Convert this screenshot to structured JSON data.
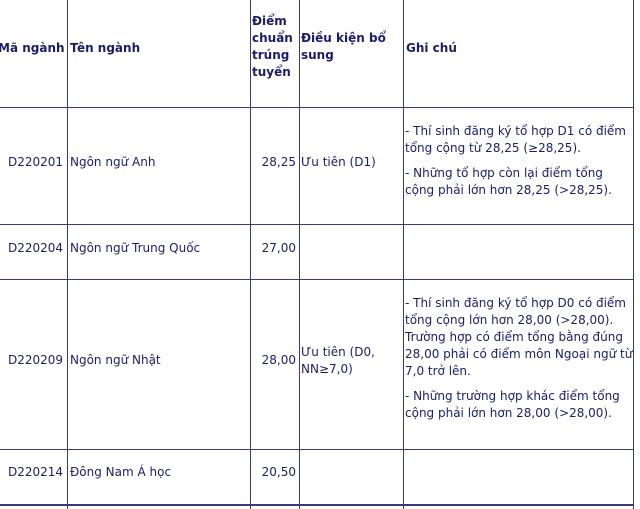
{
  "table": {
    "headers": [
      "Mã ngành",
      "Tên ngành",
      "Điểm chuẩn trúng tuyển",
      "Điều kiện bổ sung",
      "Ghi chú"
    ],
    "rows": [
      {
        "code": "D220201",
        "name": "Ngôn ngữ Anh",
        "score": "28,25",
        "condition": "Ưu tiên (D1)",
        "notes": [
          "- Thí sinh đăng ký tổ hợp D1 có điểm tổng cộng từ 28,25 (≥28,25).",
          "- Những tổ hợp còn lại điểm tổng cộng phải lớn hơn 28,25 (>28,25)."
        ]
      },
      {
        "code": "D220204",
        "name": "Ngôn ngữ Trung Quốc",
        "score": "27,00",
        "condition": "",
        "notes": []
      },
      {
        "code": "D220209",
        "name": "Ngôn ngữ Nhật",
        "score": "28,00",
        "condition": "Ưu tiên (D0, NN≥7,0)",
        "notes": [
          "- Thí sinh đăng ký tổ hợp D0 có điểm tổng cộng lớn hơn 28,00 (>28,00). Trường hợp có điểm tổng bằng đúng 28,00 phải có điểm môn Ngoại ngữ từ 7,0 trở lên.",
          "- Những trường hợp khác điểm tổng cộng phải lớn hơn 28,00 (>28,00)."
        ]
      },
      {
        "code": "D220214",
        "name": "Đông Nam Á học",
        "score": "20,50",
        "condition": "",
        "notes": []
      }
    ]
  }
}
